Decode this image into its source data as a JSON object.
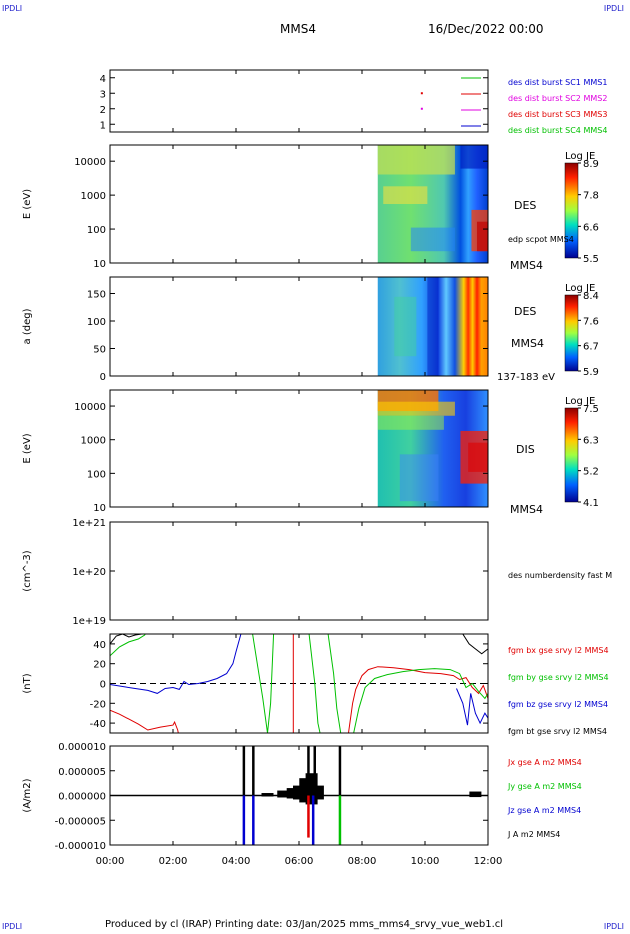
{
  "corner_labels": {
    "top_left": "IPDLI",
    "top_right": "IPDLI",
    "bottom_left": "IPDLI",
    "bottom_right": "IPDLI"
  },
  "header": {
    "spacecraft": "MMS4",
    "date": "16/Dec/2022 00:00"
  },
  "footer": {
    "text": "Produced by cl (IRAP)   Printing date: 03/Jan/2025   mms_mms4_srvy_vue_web1.cl"
  },
  "time_axis": {
    "ticks": [
      "00:00",
      "02:00",
      "04:00",
      "06:00",
      "08:00",
      "10:00",
      "12:00"
    ],
    "range_hours": [
      0,
      12
    ]
  },
  "colors": {
    "red": "#e00000",
    "green": "#00c000",
    "blue": "#0000d0",
    "black": "#000000",
    "magenta": "#e000e0"
  },
  "chart_data": [
    {
      "type": "scatter",
      "panel": "burst-availability",
      "yticks": [
        "1",
        "2",
        "3",
        "4"
      ],
      "ylim": [
        0.5,
        4.5
      ],
      "legend": [
        {
          "label": "des dist burst SC1 MMS1",
          "color": "#0000d0"
        },
        {
          "label": "des dist burst SC2 MMS2",
          "color": "#e000e0"
        },
        {
          "label": "des dist burst SC3 MMS3",
          "color": "#e00000"
        },
        {
          "label": "des dist burst SC4 MMS4",
          "color": "#00c000"
        }
      ],
      "markers": [
        {
          "sc": 3,
          "t_hours": 9.9,
          "color": "#e00000"
        },
        {
          "sc": 2,
          "t_hours": 9.9,
          "color": "#e000e0"
        }
      ]
    },
    {
      "type": "heatmap",
      "panel": "des-energy",
      "ylabel": "E (eV)",
      "yscale": "log",
      "yticks": [
        "10",
        "100",
        "1000",
        "10000"
      ],
      "ylim": [
        10,
        30000
      ],
      "data_start_hours": 8.5,
      "right_labels": [
        "DES",
        "edp scpot MMS4",
        "MMS4"
      ],
      "colorbar": {
        "title": "Log JE",
        "ticks": [
          "8.9",
          "7.8",
          "6.6",
          "5.5"
        ],
        "range": [
          5.5,
          8.9
        ]
      }
    },
    {
      "type": "heatmap",
      "panel": "des-pitch",
      "ylabel": "a (deg)",
      "yticks": [
        "0",
        "50",
        "100",
        "150"
      ],
      "ylim": [
        0,
        180
      ],
      "data_start_hours": 8.5,
      "right_labels": [
        "DES",
        "MMS4",
        "137-183 eV"
      ],
      "colorbar": {
        "title": "Log JE",
        "ticks": [
          "8.4",
          "7.6",
          "6.7",
          "5.9"
        ],
        "range": [
          5.9,
          8.4
        ]
      }
    },
    {
      "type": "heatmap",
      "panel": "dis-energy",
      "ylabel": "E (eV)",
      "yscale": "log",
      "yticks": [
        "10",
        "100",
        "1000",
        "10000"
      ],
      "ylim": [
        10,
        30000
      ],
      "data_start_hours": 8.5,
      "right_labels": [
        "DIS",
        "MMS4"
      ],
      "colorbar": {
        "title": "Log JE",
        "ticks": [
          "7.5",
          "6.3",
          "5.2",
          "4.1"
        ],
        "range": [
          4.1,
          7.5
        ]
      }
    },
    {
      "type": "line",
      "panel": "density",
      "ylabel": "(cm^-3)",
      "yscale": "log",
      "yticks": [
        "1e+19",
        "1e+20",
        "1e+21"
      ],
      "ylim": [
        1e+19,
        1e+21
      ],
      "series": [
        {
          "name": "des numberdensity fast M",
          "color": "#000000",
          "points": []
        }
      ]
    },
    {
      "type": "line",
      "panel": "magnetic-field",
      "ylabel": "(nT)",
      "yticks": [
        "-40",
        "-20",
        "0",
        "20",
        "40"
      ],
      "ylim": [
        -50,
        50
      ],
      "series": [
        {
          "name": "fgm bx gse srvy l2 MMS4",
          "color": "#e00000",
          "points": [
            [
              0,
              -27
            ],
            [
              0.3,
              -31
            ],
            [
              0.6,
              -36
            ],
            [
              0.9,
              -41
            ],
            [
              1.2,
              -47
            ],
            [
              1.6,
              -44
            ],
            [
              2.0,
              -42
            ],
            [
              2.05,
              -39
            ],
            [
              2.15,
              -47
            ],
            [
              2.2,
              -55
            ]
          ],
          "segments": [
            [
              [
                5.82,
                55
              ],
              [
                5.82,
                -55
              ]
            ],
            [
              [
                7.55,
                -55
              ],
              [
                7.7,
                -20
              ],
              [
                7.8,
                -6
              ],
              [
                8.0,
                8
              ],
              [
                8.2,
                14
              ],
              [
                8.5,
                17
              ],
              [
                9.0,
                16
              ],
              [
                9.5,
                14
              ],
              [
                10.0,
                11
              ],
              [
                10.5,
                10
              ],
              [
                10.9,
                8
              ],
              [
                11.1,
                4
              ],
              [
                11.3,
                6
              ],
              [
                11.5,
                -4
              ],
              [
                11.7,
                -10
              ],
              [
                11.85,
                -2
              ],
              [
                12.0,
                -15
              ]
            ]
          ]
        },
        {
          "name": "fgm by gse srvy l2 MMS4",
          "color": "#00c000",
          "points": [
            [
              0,
              28
            ],
            [
              0.3,
              37
            ],
            [
              0.6,
              42
            ],
            [
              0.9,
              45
            ],
            [
              1.1,
              49
            ],
            [
              1.2,
              55
            ]
          ],
          "segments": [
            [
              [
                4.5,
                55
              ],
              [
                4.65,
                25
              ],
              [
                4.85,
                -15
              ],
              [
                5.0,
                -50
              ],
              [
                5.1,
                -20
              ],
              [
                5.2,
                55
              ]
            ],
            [
              [
                6.3,
                55
              ],
              [
                6.5,
                0
              ],
              [
                6.6,
                -40
              ],
              [
                6.7,
                -55
              ]
            ],
            [
              [
                6.9,
                55
              ],
              [
                7.1,
                10
              ],
              [
                7.2,
                -25
              ],
              [
                7.35,
                -55
              ]
            ],
            [
              [
                7.7,
                -55
              ],
              [
                7.9,
                -25
              ],
              [
                8.1,
                -4
              ],
              [
                8.4,
                5
              ],
              [
                8.8,
                9
              ],
              [
                9.3,
                12
              ],
              [
                9.8,
                14
              ],
              [
                10.3,
                15
              ],
              [
                10.8,
                14
              ],
              [
                11.1,
                10
              ],
              [
                11.3,
                -4
              ],
              [
                11.5,
                0
              ],
              [
                11.7,
                -8
              ],
              [
                11.9,
                -15
              ],
              [
                12.0,
                -10
              ]
            ]
          ]
        },
        {
          "name": "fgm bz gse srvy l2 MMS4",
          "color": "#0000d0",
          "points": [
            [
              0,
              -1
            ],
            [
              0.4,
              -3
            ],
            [
              0.8,
              -5
            ],
            [
              1.2,
              -7
            ],
            [
              1.5,
              -10
            ],
            [
              1.75,
              -5
            ],
            [
              2.0,
              -4
            ],
            [
              2.2,
              -6
            ],
            [
              2.35,
              2
            ],
            [
              2.5,
              -1
            ],
            [
              2.8,
              0
            ],
            [
              3.1,
              2
            ],
            [
              3.4,
              5
            ],
            [
              3.7,
              10
            ],
            [
              3.9,
              20
            ],
            [
              4.0,
              32
            ],
            [
              4.2,
              55
            ]
          ],
          "segments": [
            [
              [
                11.0,
                -5
              ],
              [
                11.2,
                -20
              ],
              [
                11.35,
                -42
              ],
              [
                11.45,
                -10
              ],
              [
                11.6,
                -30
              ],
              [
                11.75,
                -40
              ],
              [
                11.9,
                -30
              ],
              [
                12.0,
                -35
              ]
            ]
          ]
        },
        {
          "name": "fgm bt gse srvy l2 MMS4",
          "color": "#000000",
          "points": [
            [
              0,
              40
            ],
            [
              0.2,
              48
            ],
            [
              0.4,
              50
            ],
            [
              0.6,
              47
            ],
            [
              0.8,
              49
            ],
            [
              1.0,
              50
            ],
            [
              1.1,
              55
            ]
          ],
          "segments": [
            [
              [
                11.0,
                55
              ],
              [
                11.2,
                50
              ],
              [
                11.4,
                40
              ],
              [
                11.6,
                35
              ],
              [
                11.8,
                30
              ],
              [
                12.0,
                35
              ]
            ]
          ]
        }
      ]
    },
    {
      "type": "line",
      "panel": "current-density",
      "ylabel": "(A/m2)",
      "yticks": [
        "-0.000010",
        "-0.000005",
        "0.000000",
        "0.000005",
        "0.000010"
      ],
      "ylim": [
        -1e-05,
        1e-05
      ],
      "series": [
        {
          "name": "Jx gse A m2 MMS4",
          "color": "#e00000"
        },
        {
          "name": "Jy gse A m2 MMS4",
          "color": "#00c000"
        },
        {
          "name": "Jz gse A m2 MMS4",
          "color": "#0000d0"
        },
        {
          "name": "J A m2 MMS4",
          "color": "#000000"
        }
      ],
      "spikes": [
        {
          "t": 4.25,
          "v": 1e-05,
          "color": "#000000"
        },
        {
          "t": 4.55,
          "v": 1e-05,
          "color": "#000000"
        },
        {
          "t": 6.3,
          "v": 1e-05,
          "color": "#000000"
        },
        {
          "t": 6.5,
          "v": 1e-05,
          "color": "#000000"
        },
        {
          "t": 7.3,
          "v": 1e-05,
          "color": "#000000"
        },
        {
          "t": 4.25,
          "v": -1e-05,
          "color": "#0000d0"
        },
        {
          "t": 4.55,
          "v": -1e-05,
          "color": "#0000d0"
        },
        {
          "t": 6.45,
          "v": -1e-05,
          "color": "#0000d0"
        },
        {
          "t": 6.3,
          "v": -8.5e-06,
          "color": "#e00000"
        },
        {
          "t": 7.3,
          "v": -1e-05,
          "color": "#00c000"
        }
      ],
      "activity": [
        {
          "t": 5.0,
          "amp": 5e-07
        },
        {
          "t": 5.5,
          "amp": 1e-06
        },
        {
          "t": 5.8,
          "amp": 1.5e-06
        },
        {
          "t": 6.0,
          "amp": 2e-06
        },
        {
          "t": 6.2,
          "amp": 3.5e-06
        },
        {
          "t": 6.4,
          "amp": 4.5e-06
        },
        {
          "t": 6.6,
          "amp": 2e-06
        },
        {
          "t": 11.6,
          "amp": 8e-07
        }
      ]
    }
  ]
}
